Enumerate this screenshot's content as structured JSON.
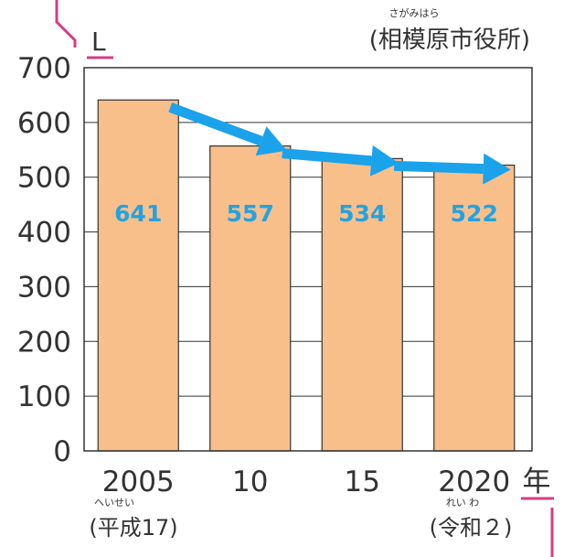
{
  "chart_data": {
    "type": "bar",
    "ylabel": "L",
    "source": "(相模原市役所)",
    "source_ruby": "さがみはら",
    "categories": [
      "2005",
      "10",
      "15",
      "2020"
    ],
    "values": [
      641,
      557,
      534,
      522
    ],
    "x_unit": "年",
    "ylim": [
      0,
      700
    ],
    "yticks": [
      0,
      100,
      200,
      300,
      400,
      500,
      600,
      700
    ],
    "grid": true,
    "era_notes": [
      {
        "category_index": 0,
        "text": "(平成17)",
        "ruby": "へいせい"
      },
      {
        "category_index": 3,
        "text": "(令和２)",
        "ruby": "れい わ"
      }
    ],
    "bar_color": "#f9bf8b",
    "label_color": "#22a3e0",
    "arrow_color": "#1aa3ea",
    "accent_color": "#d63c85"
  }
}
